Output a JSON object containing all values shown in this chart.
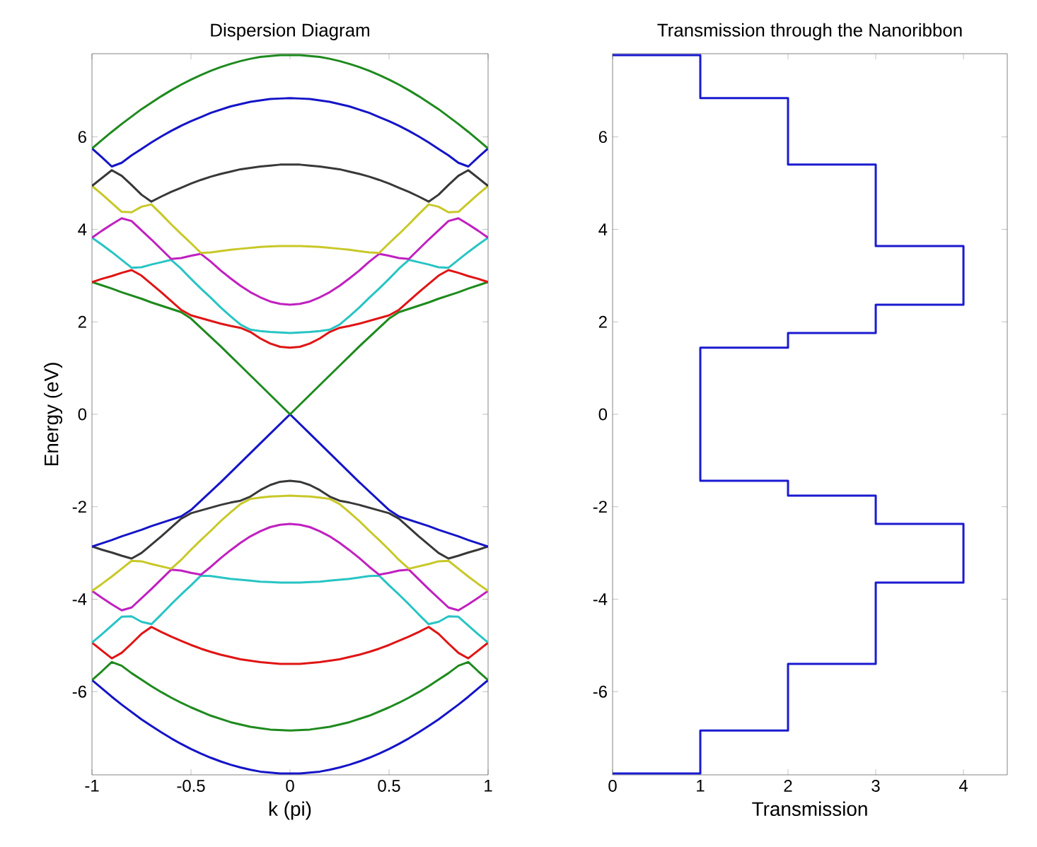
{
  "chart_data": [
    {
      "type": "line",
      "title": "Dispersion Diagram",
      "xlabel": "k (pi)",
      "ylabel": "Energy (eV)",
      "xlim": [
        -1,
        1
      ],
      "ylim": [
        -7.8,
        7.8
      ],
      "xticks": [
        -1,
        -0.5,
        0,
        0.5,
        1
      ],
      "yticks": [
        -6,
        -4,
        -2,
        0,
        2,
        4,
        6
      ],
      "x": [
        -1,
        -0.95,
        -0.9,
        -0.85,
        -0.8,
        -0.75,
        -0.7,
        -0.65,
        -0.6,
        -0.55,
        -0.5,
        -0.45,
        -0.4,
        -0.35,
        -0.3,
        -0.25,
        -0.2,
        -0.15,
        -0.1,
        -0.05,
        0,
        0.05,
        0.1,
        0.15,
        0.2,
        0.25,
        0.3,
        0.35,
        0.4,
        0.45,
        0.5,
        0.55,
        0.6,
        0.65,
        0.7,
        0.75,
        0.8,
        0.85,
        0.9,
        0.95,
        1
      ],
      "series": [
        {
          "color": "#1414c8",
          "values": [
            -5.75,
            -5.93,
            -6.11,
            -6.28,
            -6.44,
            -6.6,
            -6.74,
            -6.88,
            -7.01,
            -7.13,
            -7.24,
            -7.34,
            -7.43,
            -7.51,
            -7.58,
            -7.64,
            -7.69,
            -7.73,
            -7.75,
            -7.77,
            -7.77,
            -7.77,
            -7.75,
            -7.73,
            -7.69,
            -7.64,
            -7.58,
            -7.51,
            -7.43,
            -7.34,
            -7.24,
            -7.13,
            -7.01,
            -6.88,
            -6.74,
            -6.6,
            -6.44,
            -6.28,
            -6.11,
            -5.93,
            -5.75
          ]
        },
        {
          "color": "#1e8a1e",
          "values": [
            -5.75,
            -5.56,
            -5.36,
            -5.44,
            -5.6,
            -5.74,
            -5.88,
            -6.01,
            -6.13,
            -6.24,
            -6.34,
            -6.43,
            -6.52,
            -6.59,
            -6.66,
            -6.71,
            -6.76,
            -6.79,
            -6.82,
            -6.83,
            -6.84,
            -6.83,
            -6.82,
            -6.79,
            -6.76,
            -6.71,
            -6.66,
            -6.59,
            -6.52,
            -6.43,
            -6.34,
            -6.24,
            -6.13,
            -6.01,
            -5.88,
            -5.74,
            -5.6,
            -5.44,
            -5.36,
            -5.56,
            -5.75
          ]
        },
        {
          "color": "#e01414",
          "values": [
            -4.94,
            -5.11,
            -5.28,
            -5.16,
            -4.96,
            -4.75,
            -4.6,
            -4.71,
            -4.81,
            -4.9,
            -4.99,
            -5.07,
            -5.14,
            -5.2,
            -5.25,
            -5.3,
            -5.33,
            -5.36,
            -5.38,
            -5.4,
            -5.4,
            -5.4,
            -5.38,
            -5.36,
            -5.33,
            -5.3,
            -5.25,
            -5.2,
            -5.14,
            -5.07,
            -4.99,
            -4.9,
            -4.81,
            -4.71,
            -4.6,
            -4.75,
            -4.96,
            -5.16,
            -5.28,
            -5.11,
            -4.94
          ]
        },
        {
          "color": "#28c4c4",
          "values": [
            -4.94,
            -4.76,
            -4.57,
            -4.38,
            -4.37,
            -4.49,
            -4.54,
            -4.33,
            -4.11,
            -3.9,
            -3.7,
            -3.49,
            -3.5,
            -3.53,
            -3.56,
            -3.58,
            -3.6,
            -3.62,
            -3.63,
            -3.64,
            -3.64,
            -3.64,
            -3.63,
            -3.62,
            -3.6,
            -3.58,
            -3.56,
            -3.53,
            -3.5,
            -3.49,
            -3.7,
            -3.9,
            -4.11,
            -4.33,
            -4.54,
            -4.49,
            -4.37,
            -4.38,
            -4.57,
            -4.76,
            -4.94
          ]
        },
        {
          "color": "#c020c0",
          "values": [
            -3.82,
            -3.97,
            -4.11,
            -4.24,
            -4.18,
            -3.98,
            -3.78,
            -3.57,
            -3.36,
            -3.38,
            -3.43,
            -3.47,
            -3.3,
            -3.11,
            -2.94,
            -2.78,
            -2.64,
            -2.53,
            -2.44,
            -2.39,
            -2.37,
            -2.39,
            -2.44,
            -2.53,
            -2.64,
            -2.78,
            -2.94,
            -3.11,
            -3.3,
            -3.47,
            -3.43,
            -3.38,
            -3.36,
            -3.57,
            -3.78,
            -3.98,
            -4.18,
            -4.24,
            -4.11,
            -3.97,
            -3.82
          ]
        },
        {
          "color": "#c8c828",
          "values": [
            -3.82,
            -3.67,
            -3.51,
            -3.34,
            -3.17,
            -3.18,
            -3.24,
            -3.29,
            -3.34,
            -3.15,
            -2.93,
            -2.72,
            -2.52,
            -2.31,
            -2.12,
            -1.94,
            -1.83,
            -1.8,
            -1.78,
            -1.77,
            -1.76,
            -1.77,
            -1.78,
            -1.8,
            -1.83,
            -1.94,
            -2.12,
            -2.31,
            -2.52,
            -2.72,
            -2.93,
            -3.15,
            -3.34,
            -3.29,
            -3.24,
            -3.18,
            -3.17,
            -3.34,
            -3.51,
            -3.67,
            -3.82
          ]
        },
        {
          "color": "#383838",
          "values": [
            -2.86,
            -2.93,
            -2.99,
            -3.06,
            -3.12,
            -3.0,
            -2.82,
            -2.64,
            -2.45,
            -2.26,
            -2.14,
            -2.08,
            -2.02,
            -1.96,
            -1.91,
            -1.87,
            -1.78,
            -1.64,
            -1.53,
            -1.46,
            -1.44,
            -1.46,
            -1.53,
            -1.64,
            -1.78,
            -1.87,
            -1.91,
            -1.96,
            -2.02,
            -2.08,
            -2.14,
            -2.26,
            -2.45,
            -2.64,
            -2.82,
            -3.0,
            -3.12,
            -3.06,
            -2.99,
            -2.93,
            -2.86
          ]
        },
        {
          "color": "#1414c8",
          "values": [
            -2.86,
            -2.79,
            -2.72,
            -2.64,
            -2.57,
            -2.5,
            -2.42,
            -2.35,
            -2.28,
            -2.21,
            -2.07,
            -1.87,
            -1.67,
            -1.47,
            -1.26,
            -1.05,
            -0.84,
            -0.63,
            -0.42,
            -0.21,
            0.0,
            -0.21,
            -0.42,
            -0.63,
            -0.84,
            -1.05,
            -1.26,
            -1.47,
            -1.67,
            -1.87,
            -2.07,
            -2.21,
            -2.28,
            -2.35,
            -2.42,
            -2.5,
            -2.57,
            -2.64,
            -2.72,
            -2.79,
            -2.86
          ]
        },
        {
          "color": "#1e8a1e",
          "values": [
            2.86,
            2.79,
            2.72,
            2.64,
            2.57,
            2.5,
            2.42,
            2.35,
            2.28,
            2.21,
            2.07,
            1.87,
            1.67,
            1.47,
            1.26,
            1.05,
            0.84,
            0.63,
            0.42,
            0.21,
            0.0,
            0.21,
            0.42,
            0.63,
            0.84,
            1.05,
            1.26,
            1.47,
            1.67,
            1.87,
            2.07,
            2.21,
            2.28,
            2.35,
            2.42,
            2.5,
            2.57,
            2.64,
            2.72,
            2.79,
            2.86
          ]
        },
        {
          "color": "#e01414",
          "values": [
            2.86,
            2.93,
            2.99,
            3.06,
            3.12,
            3.0,
            2.82,
            2.64,
            2.45,
            2.26,
            2.14,
            2.08,
            2.02,
            1.96,
            1.91,
            1.87,
            1.78,
            1.64,
            1.53,
            1.46,
            1.44,
            1.46,
            1.53,
            1.64,
            1.78,
            1.87,
            1.91,
            1.96,
            2.02,
            2.08,
            2.14,
            2.26,
            2.45,
            2.64,
            2.82,
            3.0,
            3.12,
            3.06,
            2.99,
            2.93,
            2.86
          ]
        },
        {
          "color": "#28c4c4",
          "values": [
            3.82,
            3.67,
            3.51,
            3.34,
            3.17,
            3.18,
            3.24,
            3.29,
            3.34,
            3.15,
            2.93,
            2.72,
            2.52,
            2.31,
            2.12,
            1.94,
            1.83,
            1.8,
            1.78,
            1.77,
            1.76,
            1.77,
            1.78,
            1.8,
            1.83,
            1.94,
            2.12,
            2.31,
            2.52,
            2.72,
            2.93,
            3.15,
            3.34,
            3.29,
            3.24,
            3.18,
            3.17,
            3.34,
            3.51,
            3.67,
            3.82
          ]
        },
        {
          "color": "#c020c0",
          "values": [
            3.82,
            3.97,
            4.11,
            4.24,
            4.18,
            3.98,
            3.78,
            3.57,
            3.36,
            3.38,
            3.43,
            3.47,
            3.3,
            3.11,
            2.94,
            2.78,
            2.64,
            2.53,
            2.44,
            2.39,
            2.37,
            2.39,
            2.44,
            2.53,
            2.64,
            2.78,
            2.94,
            3.11,
            3.3,
            3.47,
            3.43,
            3.38,
            3.36,
            3.57,
            3.78,
            3.98,
            4.18,
            4.24,
            4.11,
            3.97,
            3.82
          ]
        },
        {
          "color": "#c8c828",
          "values": [
            4.94,
            4.76,
            4.57,
            4.38,
            4.37,
            4.49,
            4.54,
            4.33,
            4.11,
            3.9,
            3.7,
            3.49,
            3.5,
            3.53,
            3.56,
            3.58,
            3.6,
            3.62,
            3.63,
            3.64,
            3.64,
            3.64,
            3.63,
            3.62,
            3.6,
            3.58,
            3.56,
            3.53,
            3.5,
            3.49,
            3.7,
            3.9,
            4.11,
            4.33,
            4.54,
            4.49,
            4.37,
            4.38,
            4.57,
            4.76,
            4.94
          ]
        },
        {
          "color": "#383838",
          "values": [
            4.94,
            5.11,
            5.28,
            5.16,
            4.96,
            4.75,
            4.6,
            4.71,
            4.81,
            4.9,
            4.99,
            5.07,
            5.14,
            5.2,
            5.25,
            5.3,
            5.33,
            5.36,
            5.38,
            5.4,
            5.4,
            5.4,
            5.38,
            5.36,
            5.33,
            5.3,
            5.25,
            5.2,
            5.14,
            5.07,
            4.99,
            4.9,
            4.81,
            4.71,
            4.6,
            4.75,
            4.96,
            5.16,
            5.28,
            5.11,
            4.94
          ]
        },
        {
          "color": "#1414c8",
          "values": [
            5.75,
            5.56,
            5.36,
            5.44,
            5.6,
            5.74,
            5.88,
            6.01,
            6.13,
            6.24,
            6.34,
            6.43,
            6.52,
            6.59,
            6.66,
            6.71,
            6.76,
            6.79,
            6.82,
            6.83,
            6.84,
            6.83,
            6.82,
            6.79,
            6.76,
            6.71,
            6.66,
            6.59,
            6.52,
            6.43,
            6.34,
            6.24,
            6.13,
            6.01,
            5.88,
            5.74,
            5.6,
            5.44,
            5.36,
            5.56,
            5.75
          ]
        },
        {
          "color": "#1e8a1e",
          "values": [
            5.75,
            5.93,
            6.11,
            6.28,
            6.44,
            6.6,
            6.74,
            6.88,
            7.01,
            7.13,
            7.24,
            7.34,
            7.43,
            7.51,
            7.58,
            7.64,
            7.69,
            7.73,
            7.75,
            7.77,
            7.77,
            7.77,
            7.75,
            7.73,
            7.69,
            7.64,
            7.58,
            7.51,
            7.43,
            7.34,
            7.24,
            7.13,
            7.01,
            6.88,
            6.74,
            6.6,
            6.44,
            6.28,
            6.11,
            5.93,
            5.75
          ]
        }
      ]
    },
    {
      "type": "line",
      "title": "Transmission through the Nanoribbon",
      "xlabel": "Transmission",
      "xlim": [
        0,
        4.5
      ],
      "ylim": [
        -7.8,
        7.8
      ],
      "xticks": [
        0,
        1,
        2,
        3,
        4
      ],
      "yticks": [
        -6,
        -4,
        -2,
        0,
        2,
        4,
        6
      ],
      "series": [
        {
          "color": "#1a1ad0",
          "x": [
            0,
            1,
            1,
            2,
            2,
            3,
            3,
            4,
            4,
            3,
            3,
            2,
            2,
            1,
            1,
            2,
            2,
            3,
            3,
            4,
            4,
            3,
            3,
            2,
            2,
            1,
            1,
            0
          ],
          "values": [
            7.77,
            7.77,
            6.84,
            6.84,
            5.4,
            5.4,
            3.64,
            3.64,
            2.37,
            2.37,
            1.76,
            1.76,
            1.44,
            1.44,
            -1.44,
            -1.44,
            -1.76,
            -1.76,
            -2.37,
            -2.37,
            -3.64,
            -3.64,
            -5.4,
            -5.4,
            -6.84,
            -6.84,
            -7.77,
            -7.77
          ]
        }
      ]
    }
  ]
}
